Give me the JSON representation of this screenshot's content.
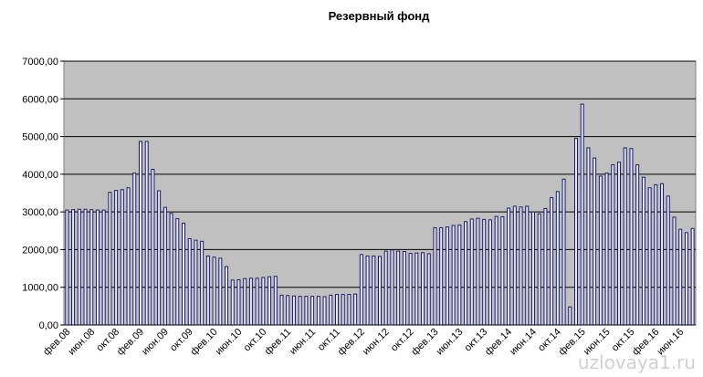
{
  "chart_data": {
    "type": "bar",
    "title": "Резервный фонд",
    "categories": [
      "фев.08",
      null,
      null,
      null,
      "июн.08",
      null,
      null,
      null,
      "окт.08",
      null,
      null,
      null,
      "фев.09",
      null,
      null,
      null,
      "июн.09",
      null,
      null,
      null,
      "окт.09",
      null,
      null,
      null,
      "фев.10",
      null,
      null,
      null,
      "июн.10",
      null,
      null,
      null,
      "окт.10",
      null,
      null,
      null,
      "фев.11",
      null,
      null,
      null,
      "июн.11",
      null,
      null,
      null,
      "окт.11",
      null,
      null,
      null,
      "фев.12",
      null,
      null,
      null,
      "июн.12",
      null,
      null,
      null,
      "окт.12",
      null,
      null,
      null,
      "фев.13",
      null,
      null,
      null,
      "июн.13",
      null,
      null,
      null,
      "окт.13",
      null,
      null,
      null,
      "фев.14",
      null,
      null,
      null,
      "июн.14",
      null,
      null,
      null,
      "окт.14",
      null,
      null,
      null,
      "фев.15",
      null,
      null,
      null,
      "июн.15",
      null,
      null,
      null,
      "окт.15",
      null,
      null,
      null,
      "фев.16",
      null,
      null,
      null,
      "июн.16",
      null,
      null
    ],
    "values": [
      3050,
      3060,
      3070,
      3070,
      3060,
      3050,
      3050,
      3520,
      3570,
      3590,
      3640,
      4030,
      4870,
      4870,
      4130,
      3560,
      3120,
      2960,
      2820,
      2700,
      2290,
      2250,
      2220,
      1830,
      1800,
      1770,
      1550,
      1190,
      1200,
      1230,
      1240,
      1240,
      1260,
      1280,
      1290,
      790,
      780,
      770,
      760,
      760,
      760,
      760,
      750,
      790,
      810,
      810,
      810,
      820,
      1870,
      1830,
      1830,
      1820,
      1960,
      1990,
      1960,
      1950,
      1900,
      1910,
      1920,
      1890,
      2580,
      2580,
      2600,
      2640,
      2650,
      2740,
      2810,
      2830,
      2800,
      2790,
      2880,
      2870,
      3100,
      3150,
      3130,
      3150,
      3000,
      2950,
      3090,
      3380,
      3540,
      3870,
      480,
      4950,
      5860,
      4700,
      4430,
      3950,
      4030,
      4250,
      4320,
      4700,
      4680,
      4250,
      3920,
      3640,
      3720,
      3750,
      3420,
      2860,
      2540,
      2450,
      2560
    ],
    "color": "#1a1a6e",
    "fill": "#e8e8f8",
    "background": "#c0c0c0",
    "ylim": [
      0,
      7000
    ],
    "yticks": [
      {
        "value": 0,
        "label": "0,00"
      },
      {
        "value": 1000,
        "label": "1000,00"
      },
      {
        "value": 2000,
        "label": "2000,00"
      },
      {
        "value": 3000,
        "label": "3000,00"
      },
      {
        "value": 4000,
        "label": "4000,00"
      },
      {
        "value": 5000,
        "label": "5000,00"
      },
      {
        "value": 6000,
        "label": "6000,00"
      },
      {
        "value": 7000,
        "label": "7000,00"
      }
    ],
    "grid": true,
    "watermark": "uzlovaya1.ru"
  }
}
